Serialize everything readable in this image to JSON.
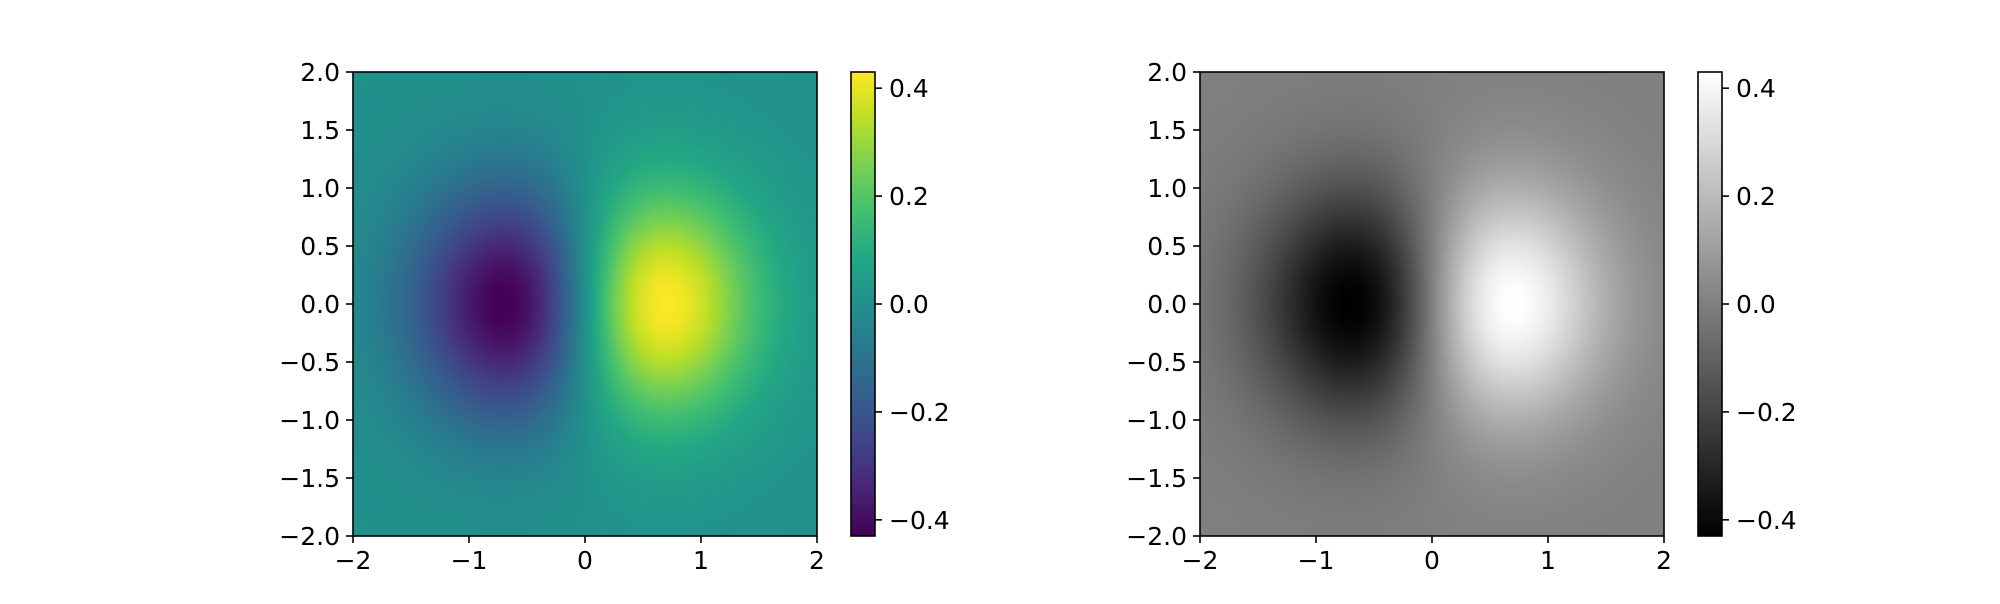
{
  "chart_data": [
    {
      "type": "heatmap",
      "colormap": "viridis",
      "function": "x*exp(-x^2 - y^2)",
      "xlim": [
        -2,
        2
      ],
      "ylim": [
        -2,
        2
      ],
      "vmin": -0.43,
      "vmax": 0.43,
      "x_ticks": [
        -2,
        -1,
        0,
        1,
        2
      ],
      "x_tick_labels": [
        "−2",
        "−1",
        "0",
        "1",
        "2"
      ],
      "y_ticks": [
        2.0,
        1.5,
        1.0,
        0.5,
        0.0,
        -0.5,
        -1.0,
        -1.5,
        -2.0
      ],
      "y_tick_labels": [
        "2.0",
        "1.5",
        "1.0",
        "0.5",
        "0.0",
        "−0.5",
        "−1.0",
        "−1.5",
        "−2.0"
      ],
      "colorbar_ticks": [
        0.4,
        0.2,
        0.0,
        -0.2,
        -0.4
      ],
      "colorbar_tick_labels": [
        "0.4",
        "0.2",
        "0.0",
        "−0.2",
        "−0.4"
      ],
      "min_point": {
        "x": -0.71,
        "y": 0.0,
        "value": -0.43
      },
      "max_point": {
        "x": 0.71,
        "y": 0.0,
        "value": 0.43
      }
    },
    {
      "type": "heatmap",
      "colormap": "gray",
      "function": "x*exp(-x^2 - y^2)",
      "xlim": [
        -2,
        2
      ],
      "ylim": [
        -2,
        2
      ],
      "vmin": -0.43,
      "vmax": 0.43,
      "x_ticks": [
        -2,
        -1,
        0,
        1,
        2
      ],
      "x_tick_labels": [
        "−2",
        "−1",
        "0",
        "1",
        "2"
      ],
      "y_ticks": [
        2.0,
        1.5,
        1.0,
        0.5,
        0.0,
        -0.5,
        -1.0,
        -1.5,
        -2.0
      ],
      "y_tick_labels": [
        "2.0",
        "1.5",
        "1.0",
        "0.5",
        "0.0",
        "−0.5",
        "−1.0",
        "−1.5",
        "−2.0"
      ],
      "colorbar_ticks": [
        0.4,
        0.2,
        0.0,
        -0.2,
        -0.4
      ],
      "colorbar_tick_labels": [
        "0.4",
        "0.2",
        "0.0",
        "−0.2",
        "−0.4"
      ],
      "min_point": {
        "x": -0.71,
        "y": 0.0,
        "value": -0.43
      },
      "max_point": {
        "x": 0.71,
        "y": 0.0,
        "value": 0.43
      }
    }
  ]
}
